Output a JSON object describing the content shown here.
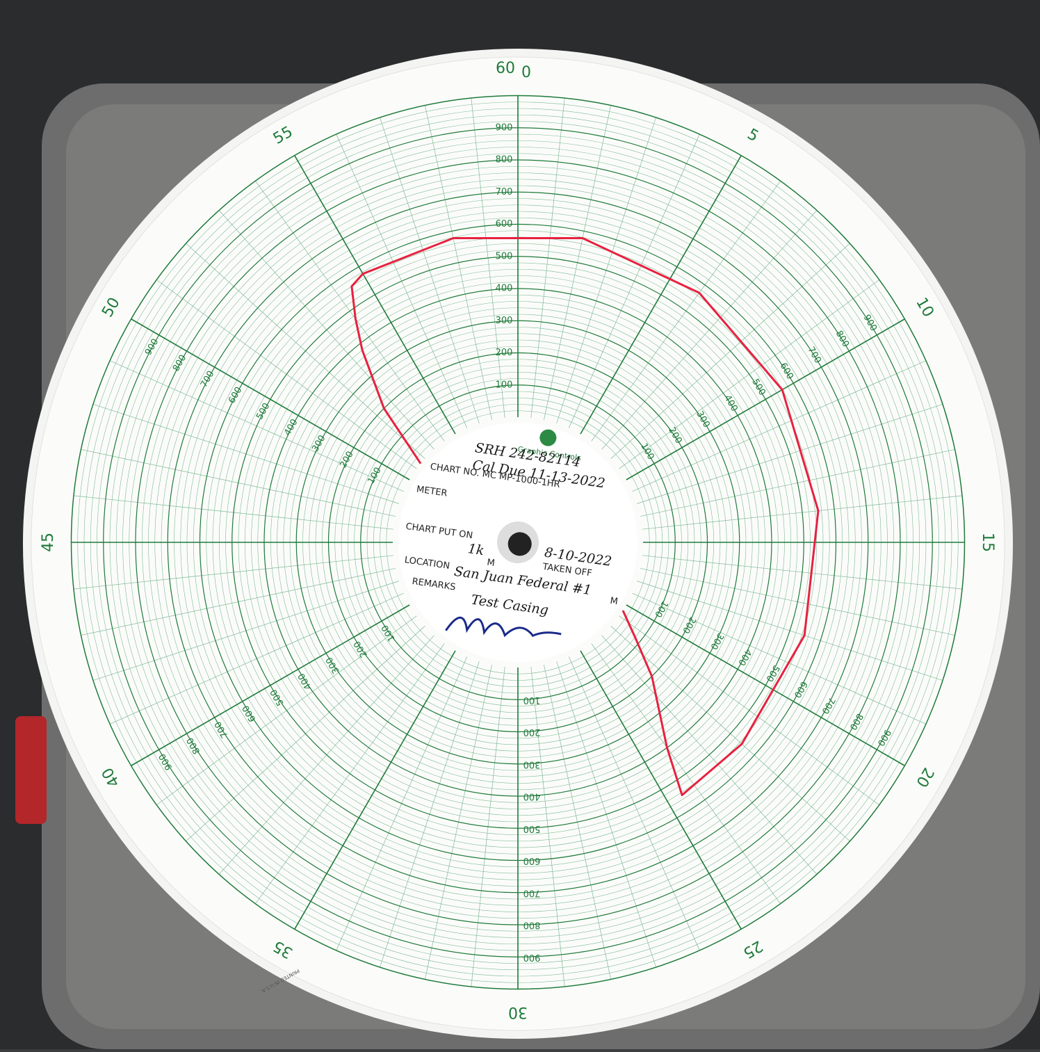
{
  "chart": {
    "minute_ticks": [
      0,
      5,
      10,
      15,
      20,
      25,
      30,
      35,
      40,
      45,
      50,
      55
    ],
    "end_label": 60,
    "pressure_ticks": [
      100,
      200,
      300,
      400,
      500,
      600,
      700,
      800,
      900
    ],
    "brand": "Graphic Controls",
    "chart_no": "CHART NO. MC MP-1000-1HR",
    "form": {
      "meter": "METER",
      "put_on": "CHART PUT ON",
      "m": "M",
      "taken_off": "TAKEN OFF",
      "location": "LOCATION",
      "remarks": "REMARKS"
    },
    "handwritten": {
      "serial": "SRH 242-82114",
      "cal_due": "Cal Due 11-13-2022",
      "date": "8-10-2022",
      "put_on": "1k",
      "location": "San Juan Federal #1",
      "remarks": "Test Casing"
    },
    "footer": "PRINTED IN U.S.A.",
    "trace": {
      "minutes": [
        51.5,
        52.5,
        53.5,
        54,
        54.5,
        55,
        58,
        2,
        6,
        10,
        14,
        18,
        22,
        24.5,
        24,
        22.5,
        21.5,
        20.5
      ],
      "pressure": [
        0,
        200,
        380,
        470,
        560,
        575,
        578,
        578,
        570,
        560,
        550,
        548,
        548,
        548,
        400,
        200,
        80,
        0
      ]
    }
  }
}
